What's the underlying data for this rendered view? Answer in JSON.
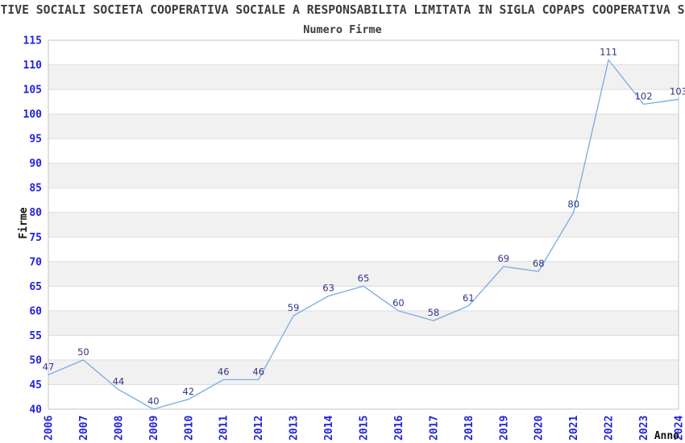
{
  "title": "TIVE SOCIALI SOCIETA COOPERATIVA SOCIALE A RESPONSABILITA LIMITATA IN SIGLA COPAPS COOPERATIVA S",
  "chart_data": {
    "type": "line",
    "title": "Numero Firme",
    "x": [
      "2006",
      "2007",
      "2008",
      "2009",
      "2010",
      "2011",
      "2012",
      "2013",
      "2014",
      "2015",
      "2016",
      "2017",
      "2018",
      "2019",
      "2020",
      "2021",
      "2022",
      "2023",
      "2024"
    ],
    "values": [
      47,
      50,
      44,
      40,
      42,
      46,
      46,
      59,
      63,
      65,
      60,
      58,
      61,
      69,
      68,
      80,
      111,
      102,
      103
    ],
    "xlabel": "Anno",
    "ylabel": "Firme",
    "ylim": [
      40,
      115
    ],
    "ytick_step": 5,
    "grid": true,
    "point_labels": true,
    "legend_position": "none",
    "band_fill": "alternating"
  },
  "colors": {
    "line": "#78abe2",
    "tick_label": "#2222dd",
    "point_label": "#343487",
    "band": "#f1f1f1",
    "gridline": "#dddddd",
    "plot_border": "#c6c6c6",
    "axis_title": "#111111",
    "title": "#3c3c3c"
  }
}
